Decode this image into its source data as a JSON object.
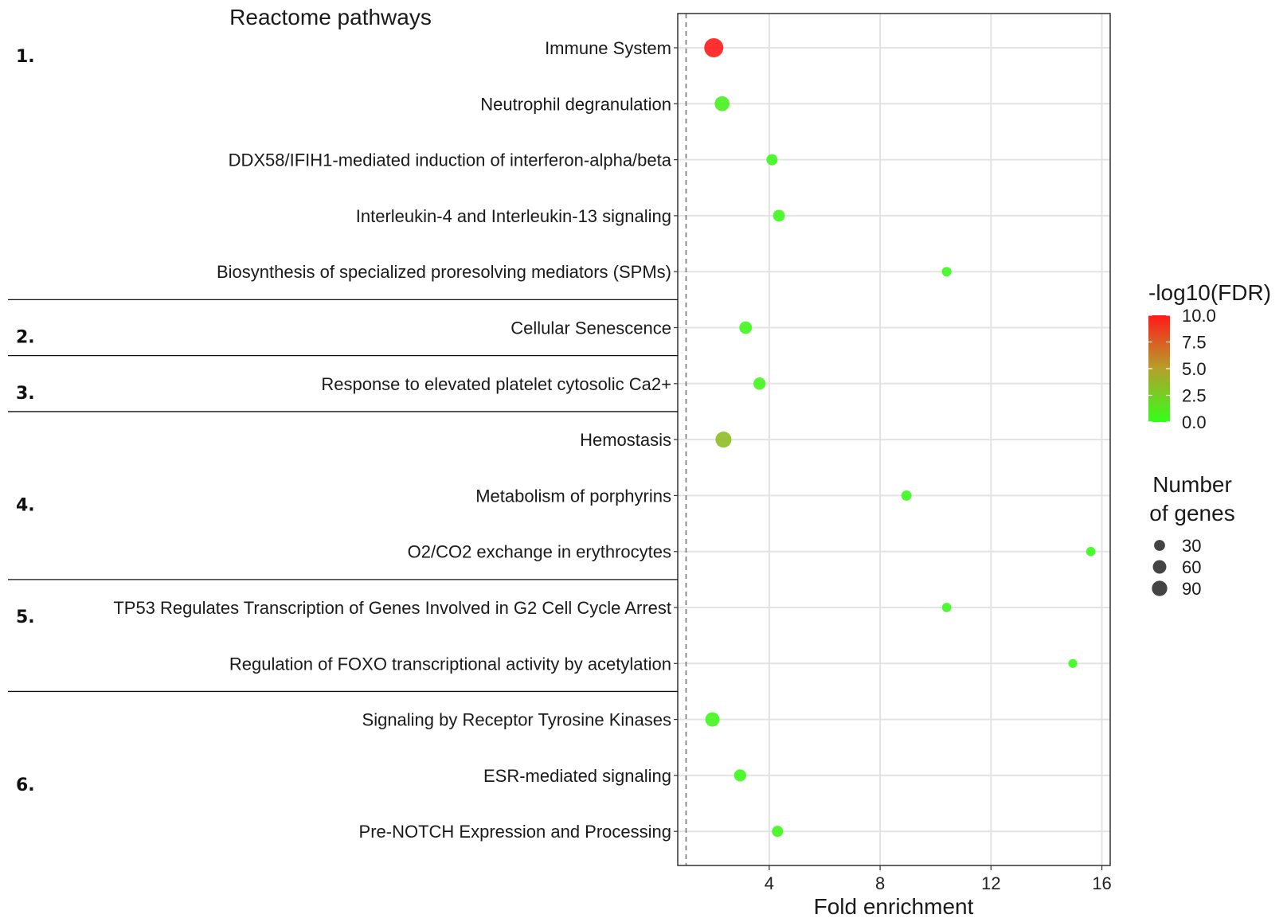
{
  "chart_data": {
    "type": "scatter",
    "title": "Reactome pathways",
    "xlabel": "Fold enrichment",
    "ylabel": "",
    "xlim": [
      0.7,
      16.3
    ],
    "xticks": [
      4,
      8,
      12,
      16
    ],
    "reference_line_x": 1,
    "grid": true,
    "points": [
      {
        "pathway": "Immune System",
        "fold_enrichment": 2.0,
        "neg_log10_fdr": 10.0,
        "genes": 90
      },
      {
        "pathway": "Neutrophil degranulation",
        "fold_enrichment": 2.3,
        "neg_log10_fdr": 0.8,
        "genes": 45
      },
      {
        "pathway": "DDX58/IFIH1-mediated induction of interferon-alpha/beta",
        "fold_enrichment": 4.1,
        "neg_log10_fdr": 0.4,
        "genes": 18
      },
      {
        "pathway": "Interleukin-4 and Interleukin-13 signaling",
        "fold_enrichment": 4.35,
        "neg_log10_fdr": 0.4,
        "genes": 22
      },
      {
        "pathway": "Biosynthesis of specialized proresolving mediators (SPMs)",
        "fold_enrichment": 10.4,
        "neg_log10_fdr": 0.3,
        "genes": 10
      },
      {
        "pathway": "Cellular Senescence",
        "fold_enrichment": 3.15,
        "neg_log10_fdr": 0.5,
        "genes": 27
      },
      {
        "pathway": "Response to elevated platelet cytosolic Ca2+",
        "fold_enrichment": 3.65,
        "neg_log10_fdr": 0.5,
        "genes": 25
      },
      {
        "pathway": "Hemostasis",
        "fold_enrichment": 2.35,
        "neg_log10_fdr": 3.5,
        "genes": 55
      },
      {
        "pathway": "Metabolism of porphyrins",
        "fold_enrichment": 8.95,
        "neg_log10_fdr": 0.3,
        "genes": 13
      },
      {
        "pathway": "O2/CO2 exchange in erythrocytes",
        "fold_enrichment": 15.6,
        "neg_log10_fdr": 0.2,
        "genes": 9
      },
      {
        "pathway": "TP53 Regulates Transcription of Genes Involved in G2 Cell Cycle Arrest",
        "fold_enrichment": 10.4,
        "neg_log10_fdr": 0.2,
        "genes": 9
      },
      {
        "pathway": "Regulation of FOXO transcriptional activity by acetylation",
        "fold_enrichment": 14.95,
        "neg_log10_fdr": 0.2,
        "genes": 7
      },
      {
        "pathway": "Signaling by Receptor Tyrosine Kinases",
        "fold_enrichment": 1.95,
        "neg_log10_fdr": 0.5,
        "genes": 40
      },
      {
        "pathway": "ESR-mediated signaling",
        "fold_enrichment": 2.95,
        "neg_log10_fdr": 0.4,
        "genes": 24
      },
      {
        "pathway": "Pre-NOTCH Expression and Processing",
        "fold_enrichment": 4.3,
        "neg_log10_fdr": 0.4,
        "genes": 18
      }
    ],
    "groups": [
      {
        "label": "1.",
        "first": 0,
        "last": 4
      },
      {
        "label": "2.",
        "first": 5,
        "last": 5
      },
      {
        "label": "3.",
        "first": 6,
        "last": 6
      },
      {
        "label": "4.",
        "first": 7,
        "last": 9
      },
      {
        "label": "5.",
        "first": 10,
        "last": 11
      },
      {
        "label": "6.",
        "first": 12,
        "last": 14
      }
    ],
    "color_legend": {
      "title": "-log10(FDR)",
      "ticks": [
        "10.0",
        "7.5",
        "5.0",
        "2.5",
        "0.0"
      ],
      "tick_values": [
        10,
        7.5,
        5,
        2.5,
        0
      ],
      "min": 0,
      "max": 10,
      "low_color": "#33ff1a",
      "mid_color": "#b5a02a",
      "high_color": "#ff1a1a"
    },
    "size_legend": {
      "title_line1": "Number",
      "title_line2": "of genes",
      "values": [
        30,
        60,
        90
      ],
      "labels": [
        "30",
        "60",
        "90"
      ]
    }
  }
}
